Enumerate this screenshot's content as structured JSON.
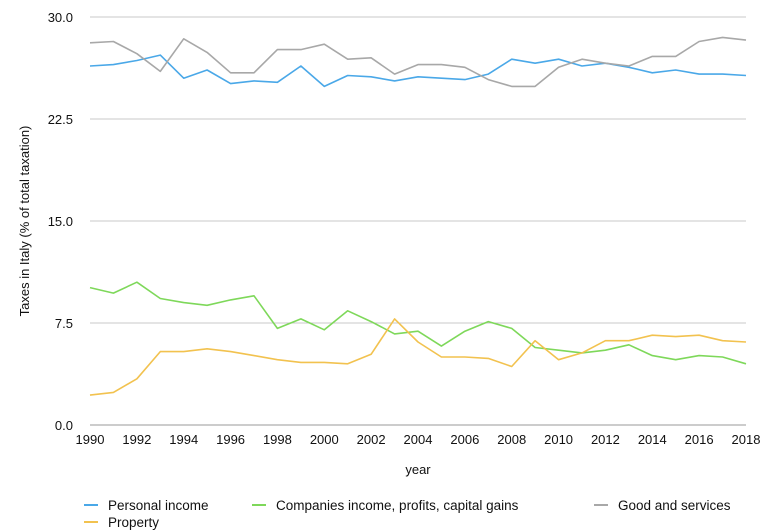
{
  "chart_data": {
    "type": "line",
    "xlabel": "year",
    "ylabel": "Taxes in Italy (% of total taxation)",
    "ylim": [
      0,
      30
    ],
    "yticks": [
      "0.0",
      "7.5",
      "15.0",
      "22.5",
      "30.0"
    ],
    "x": [
      1990,
      1991,
      1992,
      1993,
      1994,
      1995,
      1996,
      1997,
      1998,
      1999,
      2000,
      2001,
      2002,
      2003,
      2004,
      2005,
      2006,
      2007,
      2008,
      2009,
      2010,
      2011,
      2012,
      2013,
      2014,
      2015,
      2016,
      2017,
      2018
    ],
    "xticks": [
      "1990",
      "1992",
      "1994",
      "1996",
      "1998",
      "2000",
      "2002",
      "2004",
      "2006",
      "2008",
      "2010",
      "2012",
      "2014",
      "2016",
      "2018"
    ],
    "grid": "horizontal",
    "legend_position": "bottom",
    "series": [
      {
        "name": "Personal income",
        "color": "#4aa8e8",
        "values": [
          26.4,
          26.5,
          26.8,
          27.2,
          25.5,
          26.1,
          25.1,
          25.3,
          25.2,
          26.4,
          24.9,
          25.7,
          25.6,
          25.3,
          25.6,
          25.5,
          25.4,
          25.8,
          26.9,
          26.6,
          26.9,
          26.4,
          26.6,
          26.3,
          25.9,
          26.1,
          25.8,
          25.8,
          25.7
        ]
      },
      {
        "name": "Companies income, profits, capital gains",
        "color": "#7ed85a",
        "values": [
          10.1,
          9.7,
          10.5,
          9.3,
          9.0,
          8.8,
          9.2,
          9.5,
          7.1,
          7.8,
          7.0,
          8.4,
          7.6,
          6.7,
          6.9,
          5.8,
          6.9,
          7.6,
          7.1,
          5.7,
          5.5,
          5.3,
          5.5,
          5.9,
          5.1,
          4.8,
          5.1,
          5.0,
          4.5
        ]
      },
      {
        "name": "Good and services",
        "color": "#a8a8a8",
        "values": [
          28.1,
          28.2,
          27.3,
          26.0,
          28.4,
          27.4,
          25.9,
          25.9,
          27.6,
          27.6,
          28.0,
          26.9,
          27.0,
          25.8,
          26.5,
          26.5,
          26.3,
          25.4,
          24.9,
          24.9,
          26.3,
          26.9,
          26.6,
          26.4,
          27.1,
          27.1,
          28.2,
          28.5,
          28.3
        ]
      },
      {
        "name": "Property",
        "color": "#f2c24f",
        "values": [
          2.2,
          2.4,
          3.4,
          5.4,
          5.4,
          5.6,
          5.4,
          5.1,
          4.8,
          4.6,
          4.6,
          4.5,
          5.2,
          7.8,
          6.1,
          5.0,
          5.0,
          4.9,
          4.3,
          6.2,
          4.8,
          5.3,
          6.2,
          6.2,
          6.6,
          6.5,
          6.6,
          6.2,
          6.1
        ]
      }
    ]
  }
}
